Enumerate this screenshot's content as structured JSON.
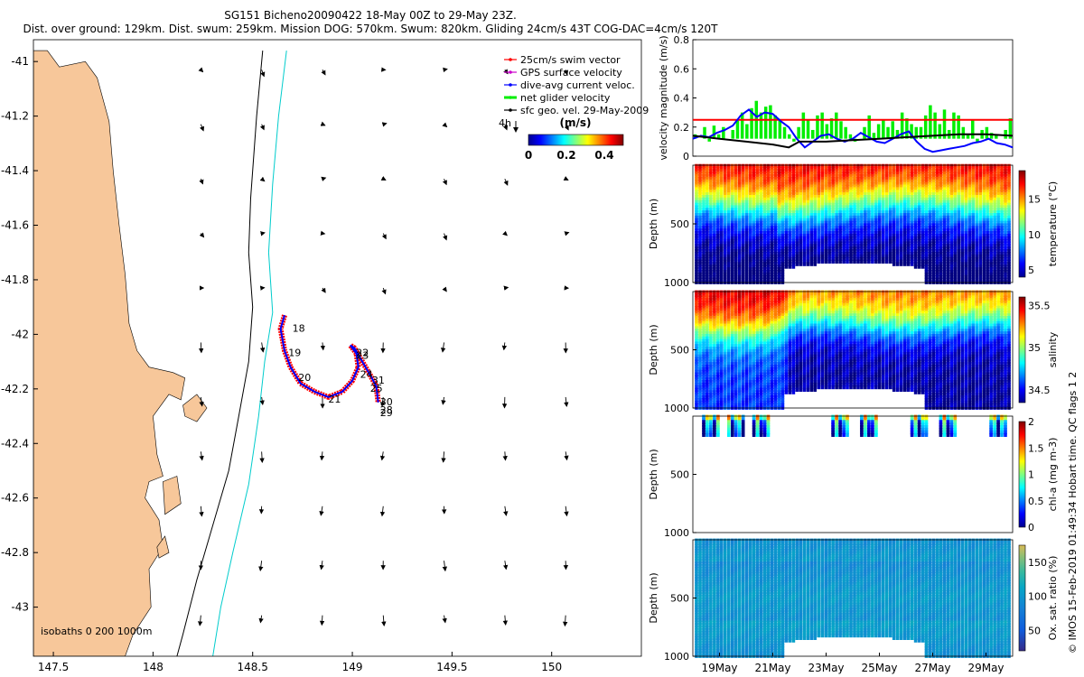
{
  "header": {
    "line1": "SG151 Bicheno20090422 18-May 00Z to 29-May 23Z.",
    "line2": "Dist. over ground: 129km. Dist. swum: 259km. Mission DOG: 570km. Swum: 820km. Gliding 24cm/s 43T COG-DAC=4cm/s 120T"
  },
  "credit": "© IMOS 15-Feb-2019 01:49:34 Hobart time. QC flags 1  2",
  "colors": {
    "land": "#f7c79a",
    "swim_vector": "#ff0000",
    "gps_velocity": "#cc00cc",
    "dive_avg": "#0000ff",
    "net_glider": "#00ee00",
    "geo_vel": "#000000",
    "isobath_200": "#000000",
    "isobath_1000": "#00cccc"
  },
  "chart_data": [
    {
      "type": "map",
      "name": "map",
      "xlim": [
        147.4,
        150.45
      ],
      "ylim": [
        -43.18,
        -40.92
      ],
      "xticks": [
        147.5,
        148,
        148.5,
        149,
        149.5,
        150
      ],
      "xtick_labels": [
        "147.5",
        "148",
        "148.5",
        "149",
        "149.5",
        "150"
      ],
      "yticks": [
        -41,
        -41.2,
        -41.4,
        -41.6,
        -41.8,
        -42,
        -42.2,
        -42.4,
        -42.6,
        -42.8,
        -43
      ],
      "ytick_labels": [
        "-41",
        "-41.2",
        "-41.4",
        "-41.6",
        "-41.8",
        "-42",
        "-42.2",
        "-42.4",
        "-42.6",
        "-42.8",
        "-43"
      ],
      "legend": {
        "placement": "top-right",
        "entries": [
          "25cm/s swim vector",
          "GPS surface velocity",
          "dive-avg current veloc.",
          "net glider velocity",
          "sfc geo. vel. 29-May-2009"
        ],
        "scale_label": "4h",
        "colorbar_title": "(m/s)",
        "colorbar_ticks": [
          "0",
          "0.2",
          "0.4"
        ]
      },
      "isobath_label": "isobaths  0   200  1000m",
      "coast": [
        [
          147.4,
          -40.96
        ],
        [
          147.47,
          -40.96
        ],
        [
          147.53,
          -41.02
        ],
        [
          147.66,
          -41.0
        ],
        [
          147.72,
          -41.06
        ],
        [
          147.78,
          -41.22
        ],
        [
          147.8,
          -41.4
        ],
        [
          147.83,
          -41.6
        ],
        [
          147.86,
          -41.78
        ],
        [
          147.88,
          -41.96
        ],
        [
          147.92,
          -42.06
        ],
        [
          147.98,
          -42.12
        ],
        [
          148.1,
          -42.14
        ],
        [
          148.16,
          -42.16
        ],
        [
          148.14,
          -42.24
        ],
        [
          148.08,
          -42.22
        ],
        [
          148.0,
          -42.3
        ],
        [
          148.02,
          -42.44
        ],
        [
          148.05,
          -42.52
        ],
        [
          147.98,
          -42.54
        ],
        [
          147.96,
          -42.6
        ],
        [
          148.03,
          -42.68
        ],
        [
          148.05,
          -42.78
        ],
        [
          147.98,
          -42.86
        ],
        [
          147.99,
          -43.0
        ],
        [
          147.9,
          -43.1
        ],
        [
          147.86,
          -43.18
        ],
        [
          147.4,
          -43.18
        ]
      ],
      "islands": [
        [
          [
            148.15,
            -42.26
          ],
          [
            148.22,
            -42.22
          ],
          [
            148.27,
            -42.27
          ],
          [
            148.22,
            -42.32
          ],
          [
            148.16,
            -42.3
          ]
        ],
        [
          [
            148.05,
            -42.54
          ],
          [
            148.12,
            -42.52
          ],
          [
            148.14,
            -42.62
          ],
          [
            148.06,
            -42.66
          ]
        ],
        [
          [
            148.02,
            -42.78
          ],
          [
            148.06,
            -42.74
          ],
          [
            148.08,
            -42.8
          ],
          [
            148.03,
            -42.82
          ]
        ]
      ],
      "isobath_200_line": [
        [
          148.55,
          -40.96
        ],
        [
          148.52,
          -41.2
        ],
        [
          148.49,
          -41.5
        ],
        [
          148.48,
          -41.7
        ],
        [
          148.5,
          -41.9
        ],
        [
          148.48,
          -42.1
        ],
        [
          148.43,
          -42.3
        ],
        [
          148.38,
          -42.5
        ],
        [
          148.3,
          -42.7
        ],
        [
          148.22,
          -42.9
        ],
        [
          148.15,
          -43.1
        ],
        [
          148.12,
          -43.18
        ]
      ],
      "isobath_1000_line": [
        [
          148.67,
          -40.96
        ],
        [
          148.63,
          -41.2
        ],
        [
          148.6,
          -41.45
        ],
        [
          148.58,
          -41.7
        ],
        [
          148.6,
          -41.92
        ],
        [
          148.56,
          -42.1
        ],
        [
          148.53,
          -42.3
        ],
        [
          148.48,
          -42.55
        ],
        [
          148.4,
          -42.8
        ],
        [
          148.34,
          -43.0
        ],
        [
          148.3,
          -43.18
        ]
      ],
      "track": [
        [
          148.66,
          -41.93
        ],
        [
          148.64,
          -41.98
        ],
        [
          148.66,
          -42.06
        ],
        [
          148.69,
          -42.12
        ],
        [
          148.74,
          -42.18
        ],
        [
          148.81,
          -42.21
        ],
        [
          148.88,
          -42.23
        ],
        [
          148.95,
          -42.21
        ],
        [
          149.0,
          -42.17
        ],
        [
          149.03,
          -42.12
        ],
        [
          149.02,
          -42.07
        ],
        [
          148.99,
          -42.04
        ],
        [
          149.01,
          -42.05
        ],
        [
          149.05,
          -42.1
        ],
        [
          149.09,
          -42.15
        ],
        [
          149.12,
          -42.19
        ],
        [
          149.13,
          -42.25
        ]
      ],
      "day_labels": [
        {
          "t": "18",
          "lon": 148.69,
          "lat": -41.99
        },
        {
          "t": "19",
          "lon": 148.67,
          "lat": -42.08
        },
        {
          "t": "20",
          "lon": 148.72,
          "lat": -42.17
        },
        {
          "t": "21",
          "lon": 148.87,
          "lat": -42.25
        },
        {
          "t": "22",
          "lon": 149.01,
          "lat": -42.08
        },
        {
          "t": "23",
          "lon": 149.01,
          "lat": -42.09
        },
        {
          "t": "24",
          "lon": 149.03,
          "lat": -42.16
        },
        {
          "t": "25",
          "lon": 149.08,
          "lat": -42.21
        },
        {
          "t": "28",
          "lon": 149.13,
          "lat": -42.29
        },
        {
          "t": "29",
          "lon": 149.13,
          "lat": -42.3
        },
        {
          "t": "30",
          "lon": 149.13,
          "lat": -42.26
        },
        {
          "t": "31",
          "lon": 149.09,
          "lat": -42.18
        }
      ],
      "arrow_grid": {
        "lon0": 148.24,
        "dlon": 0.305,
        "nlon": 7,
        "lat0": -41.03,
        "dlat": -0.2,
        "nlat": 11
      }
    },
    {
      "type": "line",
      "name": "velocity",
      "ylabel": "velocity magnitude (m/s)",
      "xlim": [
        0,
        12
      ],
      "ylim": [
        0,
        0.8
      ],
      "yticks": [
        0,
        0.2,
        0.4,
        0.6,
        0.8
      ],
      "ytick_labels": [
        "0",
        "0.2",
        "0.4",
        "0.6",
        "0.8"
      ],
      "swim_speed": 0.25,
      "series": [
        {
          "color": "#00ee00",
          "style": "bars",
          "values": [
            0.15,
            0.12,
            0.2,
            0.1,
            0.21,
            0.15,
            0.2,
            0.12,
            0.18,
            0.25,
            0.3,
            0.22,
            0.33,
            0.38,
            0.3,
            0.34,
            0.35,
            0.28,
            0.25,
            0.2,
            0.15,
            0.1,
            0.2,
            0.3,
            0.25,
            0.18,
            0.28,
            0.3,
            0.22,
            0.26,
            0.3,
            0.24,
            0.2,
            0.15,
            0.1,
            0.12,
            0.2,
            0.28,
            0.16,
            0.22,
            0.25,
            0.2,
            0.24,
            0.18,
            0.3,
            0.26,
            0.22,
            0.2,
            0.2,
            0.28,
            0.35,
            0.3,
            0.22,
            0.32,
            0.18,
            0.3,
            0.28,
            0.2,
            0.15,
            0.25,
            0.1,
            0.18,
            0.2,
            0.16,
            0.15,
            0.12,
            0.18,
            0.26
          ]
        },
        {
          "color": "#0000ff",
          "x": [
            0,
            0.3,
            0.6,
            0.9,
            1.2,
            1.5,
            1.8,
            2.1,
            2.4,
            2.7,
            3.0,
            3.3,
            3.6,
            3.9,
            4.2,
            4.5,
            4.8,
            5.1,
            5.4,
            5.7,
            6.0,
            6.3,
            6.6,
            6.9,
            7.2,
            7.5,
            7.8,
            8.1,
            8.4,
            8.7,
            9.0,
            9.3,
            9.6,
            9.9,
            10.2,
            10.5,
            10.8,
            11.1,
            11.4,
            11.7,
            12.0
          ],
          "values": [
            0.12,
            0.14,
            0.13,
            0.16,
            0.18,
            0.21,
            0.28,
            0.32,
            0.27,
            0.3,
            0.29,
            0.24,
            0.2,
            0.12,
            0.06,
            0.1,
            0.14,
            0.15,
            0.12,
            0.1,
            0.12,
            0.16,
            0.13,
            0.1,
            0.09,
            0.12,
            0.15,
            0.17,
            0.1,
            0.05,
            0.03,
            0.04,
            0.05,
            0.06,
            0.07,
            0.09,
            0.1,
            0.12,
            0.09,
            0.08,
            0.06
          ]
        },
        {
          "color": "#000000",
          "x": [
            0,
            1,
            2,
            3,
            3.6,
            4,
            5,
            6,
            7,
            8,
            9,
            10,
            11,
            12
          ],
          "values": [
            0.14,
            0.12,
            0.1,
            0.08,
            0.06,
            0.1,
            0.1,
            0.11,
            0.12,
            0.13,
            0.14,
            0.15,
            0.15,
            0.14
          ]
        }
      ]
    },
    {
      "type": "scatter",
      "name": "temperature",
      "ylabel": "Depth (m)",
      "clabel": "temperature (°C)",
      "ylim": [
        1000,
        0
      ],
      "yticks": [
        500,
        1000
      ],
      "ytick_labels": [
        "500",
        "1000"
      ],
      "clim": [
        4,
        19
      ],
      "cticks": [
        5,
        10,
        15
      ],
      "ctick_labels": [
        "5",
        "10",
        "15"
      ]
    },
    {
      "type": "scatter",
      "name": "salinity",
      "ylabel": "Depth (m)",
      "clabel": "salinity",
      "ylim": [
        1000,
        0
      ],
      "yticks": [
        500,
        1000
      ],
      "ytick_labels": [
        "500",
        "1000"
      ],
      "clim": [
        34.35,
        35.6
      ],
      "cticks": [
        34.5,
        35,
        35.5
      ],
      "ctick_labels": [
        "34.5",
        "35",
        "35.5"
      ]
    },
    {
      "type": "scatter",
      "name": "chla",
      "ylabel": "Depth (m)",
      "clabel": "chl-a (mg m-3)",
      "ylim": [
        1000,
        0
      ],
      "yticks": [
        500,
        1000
      ],
      "ytick_labels": [
        "500",
        "1000"
      ],
      "clim": [
        0,
        2
      ],
      "cticks": [
        0,
        0.5,
        1,
        1.5,
        2
      ],
      "ctick_labels": [
        "0",
        "0.5",
        "1",
        "1.5",
        "2"
      ]
    },
    {
      "type": "scatter",
      "name": "oxygen",
      "ylabel": "Depth (m)",
      "clabel": "Ox. sat. ratio (%)",
      "ylim": [
        1000,
        0
      ],
      "yticks": [
        500,
        1000
      ],
      "ytick_labels": [
        "500",
        "1000"
      ],
      "clim": [
        20,
        175
      ],
      "cticks": [
        50,
        100,
        150
      ],
      "ctick_labels": [
        "50",
        "100",
        "150"
      ],
      "xticks": [
        1,
        3,
        5,
        7,
        9,
        11
      ],
      "xtick_labels": [
        "19May",
        "21May",
        "23May",
        "25May",
        "27May",
        "29May"
      ]
    }
  ]
}
